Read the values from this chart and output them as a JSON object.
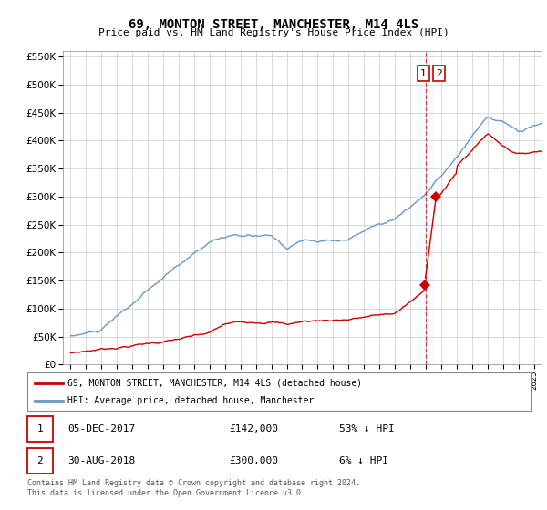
{
  "title": "69, MONTON STREET, MANCHESTER, M14 4LS",
  "subtitle": "Price paid vs. HM Land Registry's House Price Index (HPI)",
  "legend_line1": "69, MONTON STREET, MANCHESTER, M14 4LS (detached house)",
  "legend_line2": "HPI: Average price, detached house, Manchester",
  "annotation1_date": "05-DEC-2017",
  "annotation1_price": "£142,000",
  "annotation1_hpi": "53% ↓ HPI",
  "annotation2_date": "30-AUG-2018",
  "annotation2_price": "£300,000",
  "annotation2_hpi": "6% ↓ HPI",
  "footer": "Contains HM Land Registry data © Crown copyright and database right 2024.\nThis data is licensed under the Open Government Licence v3.0.",
  "sale1_year": 2017.92,
  "sale1_price": 142000,
  "sale2_year": 2018.67,
  "sale2_price": 300000,
  "vline_x": 2018.0,
  "hpi_color": "#6699cc",
  "sale_color": "#cc0000",
  "vline_color": "#cc0000",
  "ylim_max": 560000,
  "ylim_min": 0,
  "xlim_min": 1994.5,
  "xlim_max": 2025.5
}
